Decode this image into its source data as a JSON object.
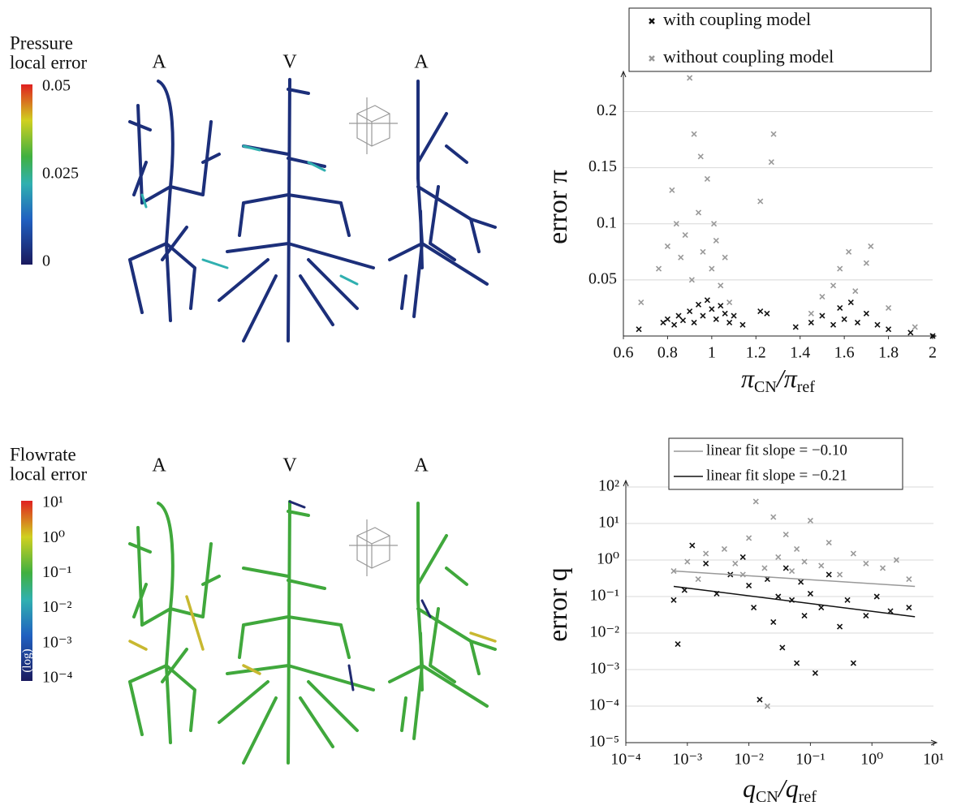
{
  "panels": [
    {
      "title": [
        "Pressure",
        "local  error"
      ],
      "labels": [
        "A",
        "V",
        "A"
      ],
      "colorbar": {
        "lim": [
          0,
          0.05
        ],
        "ticks": [
          0,
          0.025,
          0.05
        ]
      }
    },
    {
      "title": [
        "Flowrate",
        "local error"
      ],
      "labels": [
        "A",
        "V",
        "A"
      ],
      "colorbar": {
        "log": true,
        "lim": [
          0.0001,
          10
        ],
        "note": "(log)",
        "ticks": [
          {
            "value": 0.0001,
            "label": "10⁻⁴"
          },
          {
            "value": 0.001,
            "label": "10⁻³"
          },
          {
            "value": 0.01,
            "label": "10⁻²"
          },
          {
            "value": 0.1,
            "label": "10⁻¹"
          },
          {
            "value": 1,
            "label": "10⁰"
          },
          {
            "value": 10,
            "label": "10¹"
          }
        ]
      }
    }
  ],
  "chart_data": [
    {
      "type": "scatter",
      "ylabel": "error π",
      "xlabel": [
        "π",
        "CN",
        "/π",
        "ref"
      ],
      "xlim": [
        0.6,
        2
      ],
      "ylim": [
        0,
        0.23
      ],
      "xticks": [
        0.6,
        0.8,
        1,
        1.2,
        1.4,
        1.6,
        1.8,
        2
      ],
      "yticks": [
        0.05,
        0.1,
        0.15,
        0.2
      ],
      "grid": true,
      "series": [
        {
          "name": "with coupling model",
          "color": "#111111",
          "x": [
            0.67,
            0.78,
            0.8,
            0.83,
            0.85,
            0.87,
            0.9,
            0.92,
            0.94,
            0.96,
            0.98,
            1.0,
            1.02,
            1.04,
            1.06,
            1.08,
            1.1,
            1.14,
            1.22,
            1.25,
            1.38,
            1.45,
            1.5,
            1.55,
            1.58,
            1.6,
            1.63,
            1.66,
            1.7,
            1.75,
            1.8,
            1.9,
            2.0
          ],
          "values": [
            0.006,
            0.012,
            0.015,
            0.01,
            0.018,
            0.014,
            0.022,
            0.012,
            0.028,
            0.018,
            0.032,
            0.024,
            0.015,
            0.027,
            0.02,
            0.012,
            0.018,
            0.01,
            0.022,
            0.02,
            0.008,
            0.012,
            0.018,
            0.01,
            0.025,
            0.015,
            0.03,
            0.012,
            0.02,
            0.01,
            0.006,
            0.003,
            0.0
          ]
        },
        {
          "name": "without coupling model",
          "color": "#999999",
          "x": [
            0.68,
            0.76,
            0.8,
            0.82,
            0.84,
            0.86,
            0.88,
            0.9,
            0.91,
            0.92,
            0.94,
            0.95,
            0.96,
            0.98,
            1.0,
            1.01,
            1.02,
            1.04,
            1.06,
            1.08,
            1.22,
            1.27,
            1.28,
            1.45,
            1.5,
            1.55,
            1.58,
            1.62,
            1.65,
            1.7,
            1.72,
            1.8,
            1.92
          ],
          "values": [
            0.03,
            0.06,
            0.08,
            0.13,
            0.1,
            0.07,
            0.09,
            0.23,
            0.05,
            0.18,
            0.11,
            0.16,
            0.075,
            0.14,
            0.06,
            0.1,
            0.085,
            0.045,
            0.07,
            0.03,
            0.12,
            0.155,
            0.18,
            0.02,
            0.035,
            0.045,
            0.06,
            0.075,
            0.04,
            0.065,
            0.08,
            0.025,
            0.008
          ]
        }
      ]
    },
    {
      "type": "scatter",
      "ylabel": "error q",
      "xlabel": [
        "q",
        "CN",
        "/q",
        "ref"
      ],
      "xscale": "log",
      "yscale": "log",
      "xlim": [
        0.0001,
        10
      ],
      "ylim": [
        1e-05,
        100
      ],
      "grid": true,
      "xticks": [
        {
          "value": 0.0001,
          "label": "10⁻⁴"
        },
        {
          "value": 0.001,
          "label": "10⁻³"
        },
        {
          "value": 0.01,
          "label": "10⁻²"
        },
        {
          "value": 0.1,
          "label": "10⁻¹"
        },
        {
          "value": 1,
          "label": "10⁰"
        },
        {
          "value": 10,
          "label": "10¹"
        }
      ],
      "yticks": [
        {
          "value": 1e-05,
          "label": "10⁻⁵"
        },
        {
          "value": 0.0001,
          "label": "10⁻⁴"
        },
        {
          "value": 0.001,
          "label": "10⁻³"
        },
        {
          "value": 0.01,
          "label": "10⁻²"
        },
        {
          "value": 0.1,
          "label": "10⁻¹"
        },
        {
          "value": 1,
          "label": "10⁰"
        },
        {
          "value": 10,
          "label": "10¹"
        },
        {
          "value": 100,
          "label": "10²"
        }
      ],
      "series": [
        {
          "color": "#111111",
          "x": [
            0.0006,
            0.0007,
            0.0009,
            0.0012,
            0.002,
            0.003,
            0.005,
            0.008,
            0.01,
            0.012,
            0.015,
            0.02,
            0.025,
            0.03,
            0.035,
            0.04,
            0.05,
            0.06,
            0.07,
            0.08,
            0.1,
            0.12,
            0.15,
            0.2,
            0.3,
            0.4,
            0.5,
            0.8,
            1.2,
            2,
            4
          ],
          "values": [
            0.08,
            0.005,
            0.15,
            2.5,
            0.8,
            0.12,
            0.4,
            1.2,
            0.2,
            0.05,
            0.00015,
            0.3,
            0.02,
            0.1,
            0.004,
            0.6,
            0.08,
            0.0015,
            0.25,
            0.03,
            0.12,
            0.0008,
            0.05,
            0.4,
            0.015,
            0.08,
            0.0015,
            0.03,
            0.1,
            0.04,
            0.05
          ]
        },
        {
          "color": "#999999",
          "x": [
            0.0006,
            0.001,
            0.0015,
            0.002,
            0.004,
            0.006,
            0.008,
            0.01,
            0.013,
            0.018,
            0.02,
            0.025,
            0.03,
            0.04,
            0.05,
            0.06,
            0.08,
            0.1,
            0.15,
            0.2,
            0.3,
            0.5,
            0.8,
            1.5,
            2.5,
            4
          ],
          "values": [
            0.5,
            0.9,
            0.3,
            1.5,
            2,
            0.8,
            0.4,
            4,
            40,
            0.6,
            0.0001,
            15,
            1.2,
            5,
            0.5,
            2,
            0.9,
            12,
            0.7,
            3,
            0.4,
            1.5,
            0.8,
            0.6,
            1,
            0.3
          ]
        }
      ],
      "lines": [
        {
          "name": "linear fit slope = −0.10",
          "color": "#999999",
          "x": [
            0.0006,
            5
          ],
          "values": [
            0.5,
            0.19
          ]
        },
        {
          "name": "linear fit slope = −0.21",
          "color": "#111111",
          "x": [
            0.0006,
            5
          ],
          "values": [
            0.19,
            0.028
          ]
        }
      ]
    }
  ]
}
